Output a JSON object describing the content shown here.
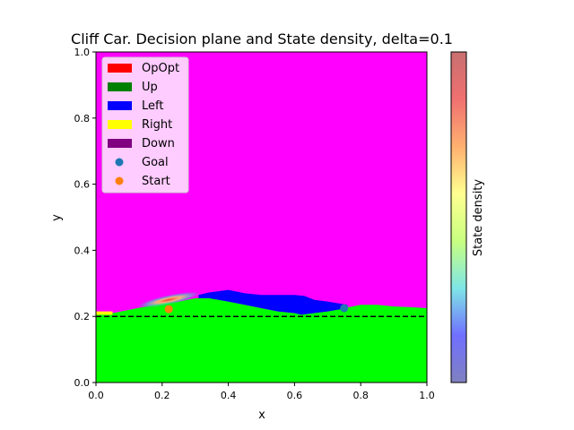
{
  "chart_data": {
    "type": "heatmap",
    "title": "Cliff Car. Decision plane and State density, delta=0.1",
    "xlabel": "x",
    "ylabel": "y",
    "xlim": [
      0.0,
      1.0
    ],
    "ylim": [
      0.0,
      1.0
    ],
    "xticks": [
      "0.0",
      "0.2",
      "0.4",
      "0.6",
      "0.8",
      "1.0"
    ],
    "yticks": [
      "0.0",
      "0.2",
      "0.4",
      "0.6",
      "0.8",
      "1.0"
    ],
    "grid": false,
    "legend_position": "top-left",
    "legend": [
      {
        "label": "OpOpt",
        "color": "#ff0000",
        "kind": "patch"
      },
      {
        "label": "Up",
        "color": "#008000",
        "kind": "patch"
      },
      {
        "label": "Left",
        "color": "#0000ff",
        "kind": "patch"
      },
      {
        "label": "Right",
        "color": "#ffff00",
        "kind": "patch"
      },
      {
        "label": "Down",
        "color": "#800080",
        "kind": "patch"
      },
      {
        "label": "Goal",
        "color": "#1f77b4",
        "kind": "marker"
      },
      {
        "label": "Start",
        "color": "#ff7f0e",
        "kind": "marker"
      }
    ],
    "region_colors": {
      "background": "#ff00ff",
      "lower": "#00ff00",
      "left_region": "#0000ff",
      "right_strip": "#ffff00"
    },
    "lower_region_boundary": {
      "x": [
        0.0,
        0.05,
        0.1,
        0.15,
        0.2,
        0.25,
        0.3,
        0.35,
        0.4,
        0.45,
        0.5,
        0.55,
        0.6,
        0.65,
        0.7,
        0.75,
        0.8,
        0.85,
        0.9,
        0.95,
        1.0
      ],
      "y": [
        0.205,
        0.21,
        0.22,
        0.23,
        0.24,
        0.245,
        0.255,
        0.255,
        0.245,
        0.235,
        0.225,
        0.215,
        0.21,
        0.21,
        0.215,
        0.225,
        0.235,
        0.235,
        0.23,
        0.228,
        0.225
      ]
    },
    "left_region_polygon": {
      "x": [
        0.31,
        0.34,
        0.4,
        0.45,
        0.5,
        0.55,
        0.6,
        0.63,
        0.66,
        0.7,
        0.73,
        0.76,
        0.76,
        0.7,
        0.66,
        0.62,
        0.6,
        0.55,
        0.5,
        0.45,
        0.4,
        0.34,
        0.31
      ],
      "y": [
        0.265,
        0.272,
        0.28,
        0.27,
        0.265,
        0.265,
        0.265,
        0.262,
        0.25,
        0.245,
        0.24,
        0.235,
        0.225,
        0.215,
        0.21,
        0.205,
        0.21,
        0.215,
        0.225,
        0.235,
        0.245,
        0.255,
        0.255
      ]
    },
    "right_strip_polygon": {
      "x": [
        0.0,
        0.05,
        0.05,
        0.0
      ],
      "y": [
        0.215,
        0.215,
        0.205,
        0.205
      ]
    },
    "dashed_line": {
      "y": 0.2,
      "x": [
        0.0,
        1.0
      ],
      "color": "#000000"
    },
    "state_density": {
      "center": [
        0.22,
        0.25
      ],
      "spread": [
        0.1,
        0.015
      ],
      "angle_deg": 12
    },
    "points": [
      {
        "label": "Goal",
        "x": 0.75,
        "y": 0.225,
        "color": "#1f77b4"
      },
      {
        "label": "Start",
        "x": 0.22,
        "y": 0.222,
        "color": "#ff7f0e"
      }
    ],
    "colorbar": {
      "label": "State density",
      "colors": [
        "#8080c0",
        "#7070ff",
        "#7fe6e6",
        "#c8ff80",
        "#ffff90",
        "#ffb070",
        "#f07070",
        "#c87070"
      ]
    }
  }
}
